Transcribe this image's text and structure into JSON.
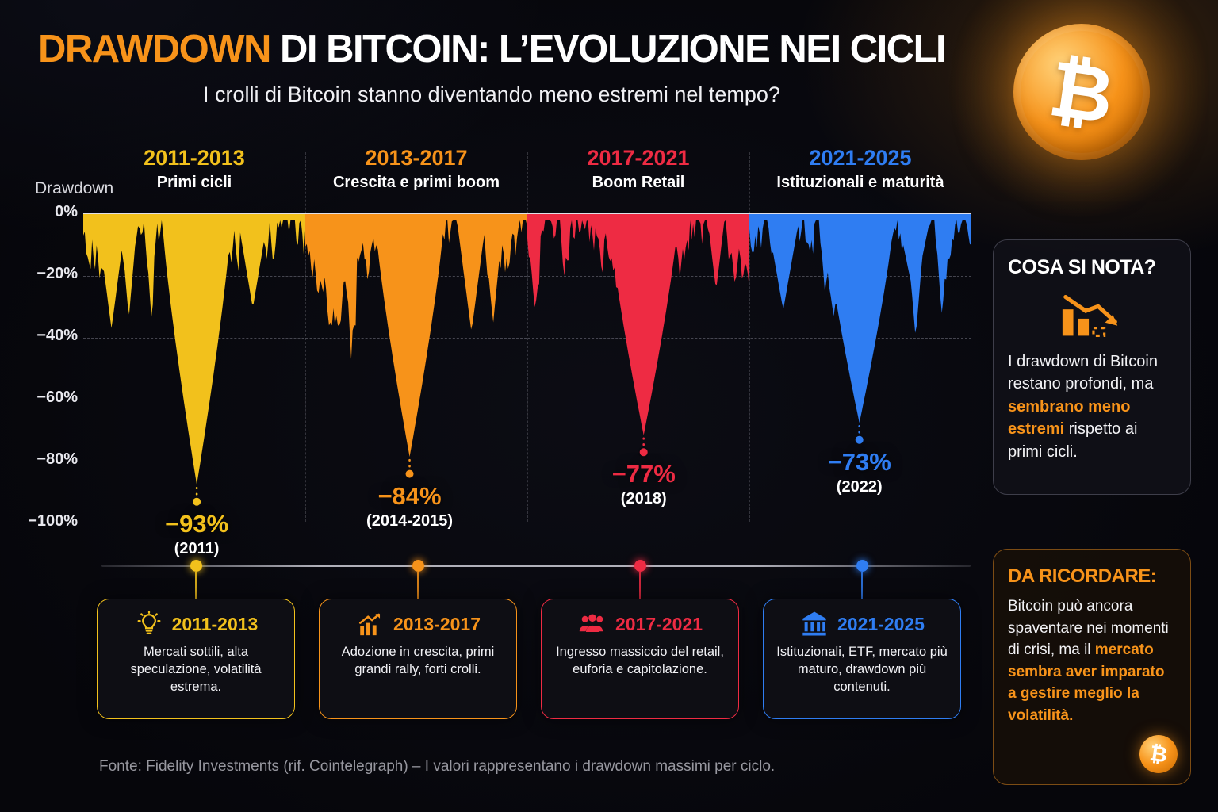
{
  "header": {
    "title_highlight": "DRAWDOWN",
    "title_rest": " DI BITCOIN: L’EVOLUZIONE NEI CICLI",
    "subtitle": "I crolli di Bitcoin stanno diventando meno estremi nel tempo?",
    "coin_glyph": "₿"
  },
  "axis": {
    "label": "Drawdown",
    "ticks": [
      "0%",
      "−20%",
      "−40%",
      "−60%",
      "−80%",
      "−100%"
    ]
  },
  "chart_data": {
    "type": "area",
    "ylabel": "Drawdown",
    "ylim": [
      -100,
      0
    ],
    "yticks": [
      0,
      -20,
      -40,
      -60,
      -80,
      -100
    ],
    "grid": "dashed horizontal",
    "legend": "none",
    "cycles": [
      {
        "years": "2011-2013",
        "label": "Primi cicli",
        "color": "#f2c11c",
        "max_drawdown_pct": -93,
        "peak_label": "−93%",
        "peak_year": "(2011)"
      },
      {
        "years": "2013-2017",
        "label": "Crescita e primi boom",
        "color": "#f7931a",
        "max_drawdown_pct": -84,
        "peak_label": "−84%",
        "peak_year": "(2014-2015)"
      },
      {
        "years": "2017-2021",
        "label": "Boom Retail",
        "color": "#ee2b43",
        "max_drawdown_pct": -77,
        "peak_label": "−77%",
        "peak_year": "(2018)"
      },
      {
        "years": "2021-2025",
        "label": "Istituzionali e maturità",
        "color": "#2f7df2",
        "max_drawdown_pct": -73,
        "peak_label": "−73%",
        "peak_year": "(2022)"
      }
    ]
  },
  "panels": {
    "nota": {
      "title": "COSA SI NOTA?",
      "icon": "declining-bars-arrow-icon",
      "segments": [
        {
          "t": "I drawdown di Bitcoin restano profondi, ma "
        },
        {
          "t": "sembrano meno estremi",
          "hl": true
        },
        {
          "t": " rispetto ai primi cicli."
        }
      ]
    },
    "ricordare": {
      "title": "DA RICORDARE:",
      "icon": "bitcoin-badge-icon",
      "segments": [
        {
          "t": "Bitcoin può ancora spaventare nei momenti di crisi, ma il "
        },
        {
          "t": "mercato sembra aver imparato a gestire meglio la volatilità.",
          "hl": true
        }
      ]
    }
  },
  "cards": [
    {
      "years": "2011-2013",
      "icon": "lightbulb-icon",
      "text": "Mercati sottili, alta speculazione, volatilità estrema."
    },
    {
      "years": "2013-2017",
      "icon": "growth-chart-icon",
      "text": "Adozione in crescita, primi grandi rally, forti crolli."
    },
    {
      "years": "2017-2021",
      "icon": "people-icon",
      "text": "Ingresso massiccio del retail, euforia e capitolazione."
    },
    {
      "years": "2021-2025",
      "icon": "bank-icon",
      "text": "Istituzionali, ETF, mercato più maturo, drawdown più contenuti."
    }
  ],
  "footer": {
    "text": "Fonte: Fidelity Investments (rif. Cointelegraph) – I valori rappresentano i drawdown massimi per ciclo."
  },
  "brand_colors": {
    "bitcoin_orange": "#f7931a"
  }
}
